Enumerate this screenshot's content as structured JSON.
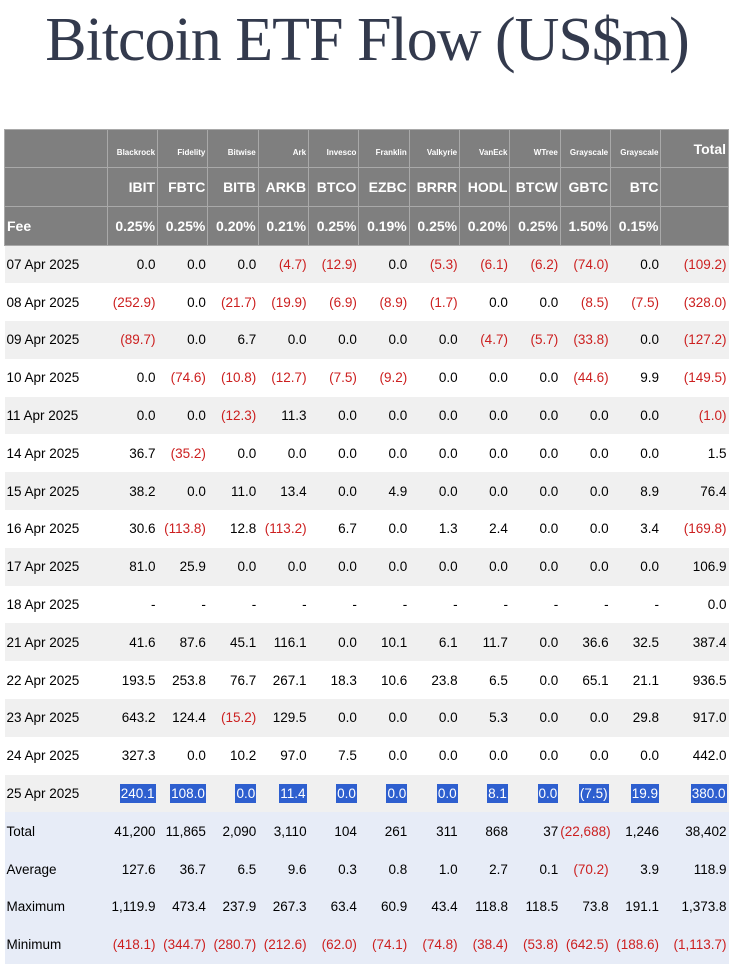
{
  "title": "Bitcoin ETF Flow (US$m)",
  "chart_data": {
    "type": "table",
    "title": "Bitcoin ETF Flow (US$m)",
    "issuers": [
      "Blackrock",
      "Fidelity",
      "Bitwise",
      "Ark",
      "Invesco",
      "Franklin",
      "Valkyrie",
      "VanEck",
      "WTree",
      "Grayscale",
      "Grayscale"
    ],
    "total_header": "Total",
    "tickers": [
      "IBIT",
      "FBTC",
      "BITB",
      "ARKB",
      "BTCO",
      "EZBC",
      "BRRR",
      "HODL",
      "BTCW",
      "GBTC",
      "BTC"
    ],
    "fee_label": "Fee",
    "fees": [
      "0.25%",
      "0.25%",
      "0.20%",
      "0.21%",
      "0.25%",
      "0.19%",
      "0.25%",
      "0.20%",
      "0.25%",
      "1.50%",
      "0.15%"
    ],
    "rows": [
      {
        "date": "07 Apr 2025",
        "values": [
          "0.0",
          "0.0",
          "0.0",
          "(4.7)",
          "(12.9)",
          "0.0",
          "(5.3)",
          "(6.1)",
          "(6.2)",
          "(74.0)",
          "0.0"
        ],
        "total": "(109.2)"
      },
      {
        "date": "08 Apr 2025",
        "values": [
          "(252.9)",
          "0.0",
          "(21.7)",
          "(19.9)",
          "(6.9)",
          "(8.9)",
          "(1.7)",
          "0.0",
          "0.0",
          "(8.5)",
          "(7.5)"
        ],
        "total": "(328.0)"
      },
      {
        "date": "09 Apr 2025",
        "values": [
          "(89.7)",
          "0.0",
          "6.7",
          "0.0",
          "0.0",
          "0.0",
          "0.0",
          "(4.7)",
          "(5.7)",
          "(33.8)",
          "0.0"
        ],
        "total": "(127.2)"
      },
      {
        "date": "10 Apr 2025",
        "values": [
          "0.0",
          "(74.6)",
          "(10.8)",
          "(12.7)",
          "(7.5)",
          "(9.2)",
          "0.0",
          "0.0",
          "0.0",
          "(44.6)",
          "9.9"
        ],
        "total": "(149.5)"
      },
      {
        "date": "11 Apr 2025",
        "values": [
          "0.0",
          "0.0",
          "(12.3)",
          "11.3",
          "0.0",
          "0.0",
          "0.0",
          "0.0",
          "0.0",
          "0.0",
          "0.0"
        ],
        "total": "(1.0)"
      },
      {
        "date": "14 Apr 2025",
        "values": [
          "36.7",
          "(35.2)",
          "0.0",
          "0.0",
          "0.0",
          "0.0",
          "0.0",
          "0.0",
          "0.0",
          "0.0",
          "0.0"
        ],
        "total": "1.5"
      },
      {
        "date": "15 Apr 2025",
        "values": [
          "38.2",
          "0.0",
          "11.0",
          "13.4",
          "0.0",
          "4.9",
          "0.0",
          "0.0",
          "0.0",
          "0.0",
          "8.9"
        ],
        "total": "76.4"
      },
      {
        "date": "16 Apr 2025",
        "values": [
          "30.6",
          "(113.8)",
          "12.8",
          "(113.2)",
          "6.7",
          "0.0",
          "1.3",
          "2.4",
          "0.0",
          "0.0",
          "3.4"
        ],
        "total": "(169.8)"
      },
      {
        "date": "17 Apr 2025",
        "values": [
          "81.0",
          "25.9",
          "0.0",
          "0.0",
          "0.0",
          "0.0",
          "0.0",
          "0.0",
          "0.0",
          "0.0",
          "0.0"
        ],
        "total": "106.9"
      },
      {
        "date": "18 Apr 2025",
        "values": [
          "-",
          "-",
          "-",
          "-",
          "-",
          "-",
          "-",
          "-",
          "-",
          "-",
          "-"
        ],
        "total": "0.0"
      },
      {
        "date": "21 Apr 2025",
        "values": [
          "41.6",
          "87.6",
          "45.1",
          "116.1",
          "0.0",
          "10.1",
          "6.1",
          "11.7",
          "0.0",
          "36.6",
          "32.5"
        ],
        "total": "387.4"
      },
      {
        "date": "22 Apr 2025",
        "values": [
          "193.5",
          "253.8",
          "76.7",
          "267.1",
          "18.3",
          "10.6",
          "23.8",
          "6.5",
          "0.0",
          "65.1",
          "21.1"
        ],
        "total": "936.5"
      },
      {
        "date": "23 Apr 2025",
        "values": [
          "643.2",
          "124.4",
          "(15.2)",
          "129.5",
          "0.0",
          "0.0",
          "0.0",
          "5.3",
          "0.0",
          "0.0",
          "29.8"
        ],
        "total": "917.0"
      },
      {
        "date": "24 Apr 2025",
        "values": [
          "327.3",
          "0.0",
          "10.2",
          "97.0",
          "7.5",
          "0.0",
          "0.0",
          "0.0",
          "0.0",
          "0.0",
          "0.0"
        ],
        "total": "442.0"
      },
      {
        "date": "25 Apr 2025",
        "values": [
          "240.1",
          "108.0",
          "0.0",
          "11.4",
          "0.0",
          "0.0",
          "0.0",
          "8.1",
          "0.0",
          "(7.5)",
          "19.9"
        ],
        "total": "380.0",
        "highlighted": true
      }
    ],
    "stats": [
      {
        "label": "Total",
        "values": [
          "41,200",
          "11,865",
          "2,090",
          "3,110",
          "104",
          "261",
          "311",
          "868",
          "37",
          "(22,688)",
          "1,246"
        ],
        "total": "38,402"
      },
      {
        "label": "Average",
        "values": [
          "127.6",
          "36.7",
          "6.5",
          "9.6",
          "0.3",
          "0.8",
          "1.0",
          "2.7",
          "0.1",
          "(70.2)",
          "3.9"
        ],
        "total": "118.9"
      },
      {
        "label": "Maximum",
        "values": [
          "1,119.9",
          "473.4",
          "237.9",
          "267.3",
          "63.4",
          "60.9",
          "43.4",
          "118.8",
          "118.5",
          "73.8",
          "191.1"
        ],
        "total": "1,373.8"
      },
      {
        "label": "Minimum",
        "values": [
          "(418.1)",
          "(344.7)",
          "(280.7)",
          "(212.6)",
          "(62.0)",
          "(74.1)",
          "(74.8)",
          "(38.4)",
          "(53.8)",
          "(642.5)",
          "(188.6)"
        ],
        "total": "(1,113.7)"
      }
    ]
  },
  "colors": {
    "header_bg": "#7f7f7f",
    "negative": "#cc1f1f",
    "highlight": "#2e5fcf",
    "title": "#333a4d",
    "stats_bg": "#e7ecf7"
  }
}
